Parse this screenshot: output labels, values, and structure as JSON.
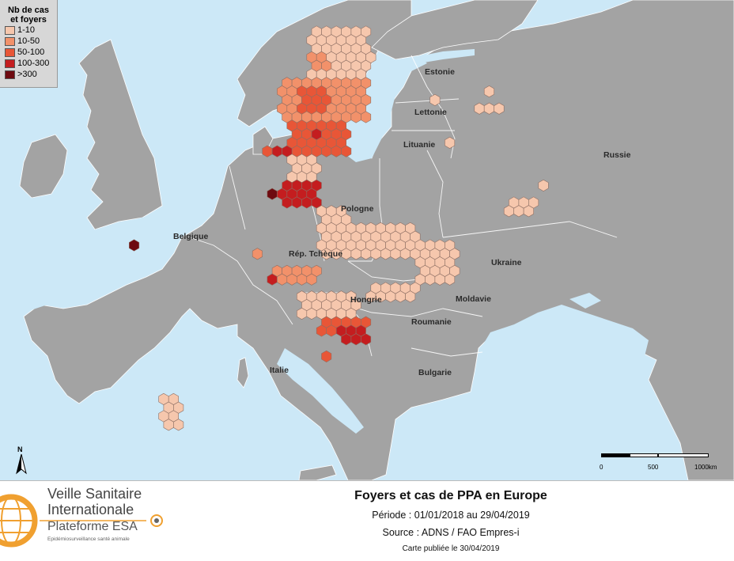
{
  "colors": {
    "sea": "#cce8f7",
    "land": "#a3a3a3",
    "border": "#ffffff",
    "class_colors": [
      "#f6c7ad",
      "#f2916a",
      "#e85637",
      "#c41d1f",
      "#6e0a10"
    ],
    "accent": "#f0a030"
  },
  "legend": {
    "title_line1": "Nb de cas",
    "title_line2": "et foyers",
    "classes": [
      "1-10",
      "10-50",
      "50-100",
      "100-300",
      ">300"
    ]
  },
  "countries": {
    "estonie": "Estonie",
    "lettonie": "Lettonie",
    "lituanie": "Lituanie",
    "russie": "Russie",
    "pologne": "Pologne",
    "belgique": "Belgique",
    "tcheque": "Rép. Tchèque",
    "ukraine": "Ukraine",
    "hongrie": "Hongrie",
    "moldavie": "Moldavie",
    "roumanie": "Roumanie",
    "bulgarie": "Bulgarie",
    "italie": "Italie"
  },
  "north_label": "N",
  "scale": {
    "labels": [
      "0",
      "500",
      "1000km"
    ]
  },
  "logo": {
    "line1": "Veille Sanitaire",
    "line2": "Internationale",
    "platform": "Plateforme ESA",
    "tagline": "Epidémiosurveillance santé animale"
  },
  "footer": {
    "title": "Foyers et cas de PPA en Europe",
    "period": "Période : 01/01/2018 au 29/04/2019",
    "source": "Source : ADNS / FAO Empres-i",
    "published": "Carte publiée le 30/04/2019"
  },
  "map_layers": {
    "hex_clusters": [
      {
        "region": "Estonie",
        "level": 0,
        "col0": 34,
        "row0": 5,
        "cols": 6,
        "rows": 6
      },
      {
        "region": "Estonie",
        "level": 1,
        "col0": 34,
        "row0": 8,
        "cols": 2,
        "rows": 2
      },
      {
        "region": "Lettonie",
        "level": 1,
        "col0": 31,
        "row0": 11,
        "cols": 9,
        "rows": 5
      },
      {
        "region": "Lettonie",
        "level": 2,
        "col0": 33,
        "row0": 12,
        "cols": 3,
        "rows": 3
      },
      {
        "region": "Lituanie",
        "level": 2,
        "col0": 32,
        "row0": 16,
        "cols": 6,
        "rows": 4
      },
      {
        "region": "Lituanie",
        "level": 3,
        "col0": 34,
        "row0": 17,
        "cols": 1,
        "rows": 1
      },
      {
        "region": "Pologne-Nord",
        "level": 2,
        "col0": 29,
        "row0": 19,
        "cols": 4,
        "rows": 1
      },
      {
        "region": "Pologne-Nord",
        "level": 3,
        "col0": 30,
        "row0": 19,
        "cols": 2,
        "rows": 1
      },
      {
        "region": "Pologne-Est",
        "level": 0,
        "col0": 32,
        "row0": 20,
        "cols": 3,
        "rows": 3
      },
      {
        "region": "Pologne-Est",
        "level": 3,
        "col0": 31,
        "row0": 23,
        "cols": 4,
        "rows": 3
      },
      {
        "region": "Pologne-Est",
        "level": 4,
        "col0": 30,
        "row0": 24,
        "cols": 1,
        "rows": 1
      },
      {
        "region": "Ukraine-Ouest",
        "level": 0,
        "col0": 35,
        "row0": 26,
        "cols": 3,
        "rows": 6
      },
      {
        "region": "Ukraine",
        "level": 0,
        "col0": 38,
        "row0": 28,
        "cols": 7,
        "rows": 4
      },
      {
        "region": "Ukraine-Est",
        "level": 0,
        "col0": 45,
        "row0": 30,
        "cols": 4,
        "rows": 5
      },
      {
        "region": "Ukraine-Sud",
        "level": 0,
        "col0": 40,
        "row0": 35,
        "cols": 5,
        "rows": 2
      },
      {
        "region": "Hongrie",
        "level": 1,
        "col0": 30,
        "row0": 33,
        "cols": 5,
        "rows": 2
      },
      {
        "region": "Hongrie",
        "level": 3,
        "col0": 30,
        "row0": 34,
        "cols": 1,
        "rows": 1
      },
      {
        "region": "Roumanie",
        "level": 0,
        "col0": 33,
        "row0": 36,
        "cols": 6,
        "rows": 3
      },
      {
        "region": "Roumanie",
        "level": 2,
        "col0": 35,
        "row0": 39,
        "cols": 5,
        "rows": 2
      },
      {
        "region": "Roumanie",
        "level": 3,
        "col0": 37,
        "row0": 40,
        "cols": 3,
        "rows": 2
      },
      {
        "region": "Russie",
        "level": 0,
        "col0": 52,
        "row0": 12,
        "cols": 1,
        "rows": 1
      },
      {
        "region": "Russie",
        "level": 0,
        "col0": 46,
        "row0": 13,
        "cols": 1,
        "rows": 1
      },
      {
        "region": "Russie",
        "level": 0,
        "col0": 51,
        "row0": 14,
        "cols": 3,
        "rows": 1
      },
      {
        "region": "Russie",
        "level": 0,
        "col0": 48,
        "row0": 18,
        "cols": 1,
        "rows": 1
      },
      {
        "region": "Russie",
        "level": 0,
        "col0": 54,
        "row0": 25,
        "cols": 3,
        "rows": 2
      },
      {
        "region": "Russie",
        "level": 0,
        "col0": 57,
        "row0": 23,
        "cols": 1,
        "rows": 1
      },
      {
        "region": "Estonie-Est",
        "level": 0,
        "col0": 39,
        "row0": 6,
        "cols": 1,
        "rows": 1
      },
      {
        "region": "Estonie-Est",
        "level": 0,
        "col0": 40,
        "row0": 8,
        "cols": 1,
        "rows": 1
      },
      {
        "region": "Sardaigne",
        "level": 0,
        "col0": 19,
        "row0": 48,
        "cols": 2,
        "rows": 4
      },
      {
        "region": "Belgique",
        "level": 4,
        "col0": 16,
        "row0": 30,
        "cols": 1,
        "rows": 1
      },
      {
        "region": "Tcheque",
        "level": 1,
        "col0": 28,
        "row0": 31,
        "cols": 1,
        "rows": 1
      },
      {
        "region": "Bulgarie",
        "level": 2,
        "col0": 35,
        "row0": 43,
        "cols": 1,
        "rows": 1
      }
    ]
  }
}
